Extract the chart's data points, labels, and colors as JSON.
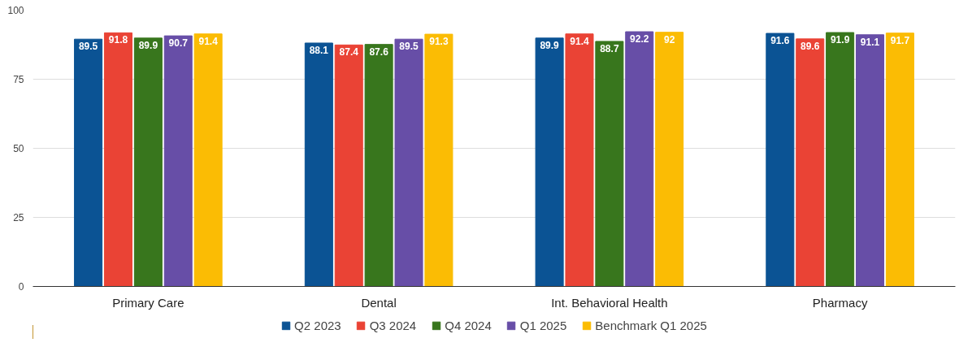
{
  "chart_data": {
    "type": "bar",
    "categories": [
      "Primary Care",
      "Dental",
      "Int. Behavioral Health",
      "Pharmacy"
    ],
    "series": [
      {
        "name": "Q2 2023",
        "color": "#0b5394",
        "values": [
          89.5,
          88.1,
          89.9,
          91.6
        ]
      },
      {
        "name": "Q3 2024",
        "color": "#ea4335",
        "values": [
          91.8,
          87.4,
          91.4,
          89.6
        ]
      },
      {
        "name": "Q4 2024",
        "color": "#38761d",
        "values": [
          89.9,
          87.6,
          88.7,
          91.9
        ]
      },
      {
        "name": "Q1 2025",
        "color": "#674ea7",
        "values": [
          90.7,
          89.5,
          92.2,
          91.1
        ]
      },
      {
        "name": "Benchmark Q1 2025",
        "color": "#fbbc04",
        "values": [
          91.4,
          91.3,
          92,
          91.7
        ]
      }
    ],
    "ylim": [
      0,
      100
    ],
    "yticks": [
      0,
      25,
      50,
      75,
      100
    ],
    "grid": "y",
    "legend": "bottom",
    "data_labels": true
  }
}
